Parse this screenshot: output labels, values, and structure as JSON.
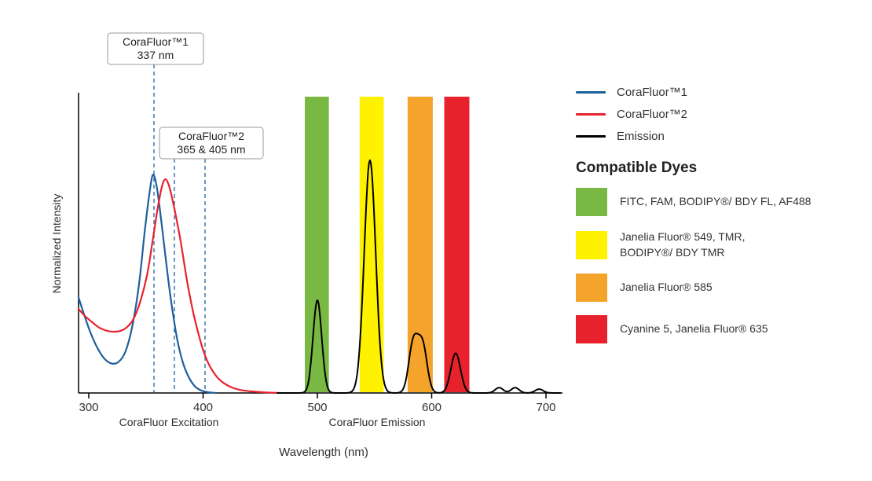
{
  "axis_labels": {
    "x": "Wavelength (nm)",
    "y": "Normalized Intensity",
    "x_sections": [
      {
        "label": "CoraFluor Excitation"
      },
      {
        "label": "CoraFluor Emission"
      }
    ]
  },
  "annotations": [
    {
      "title": "CoraFluor™1",
      "value": "337 nm"
    },
    {
      "title": "CoraFluor™2",
      "value": "365 & 405 nm"
    }
  ],
  "legend": {
    "entries": [
      {
        "label": "CoraFluor™1",
        "color": "#1E5F9E"
      },
      {
        "label": "CoraFluor™2",
        "color": "#E8222D"
      },
      {
        "label": "Emission",
        "color": "#000000"
      }
    ]
  },
  "compatible_dyes": {
    "heading": "Compatible Dyes",
    "items": [
      {
        "color": "#78B843",
        "label": "FITC, FAM, BODIPY®/ BDY FL, AF488"
      },
      {
        "color": "#FFF200",
        "label": "Janelia Fluor® 549, TMR,\nBODIPY®/ BDY TMR"
      },
      {
        "color": "#F5A42B",
        "label": "Janelia Fluor® 585"
      },
      {
        "color": "#E8222D",
        "label": "Cyanine 5, Janelia Fluor® 635"
      }
    ]
  },
  "chart_data": {
    "type": "line",
    "xlabel": "Wavelength (nm)",
    "ylabel": "Normalized Intensity",
    "xlim": [
      290,
      715
    ],
    "ylim": [
      0,
      1
    ],
    "x_ticks": [
      300,
      400,
      500,
      600,
      700
    ],
    "grid": false,
    "legend_position": "right",
    "series": [
      {
        "name": "CoraFluor™1 excitation",
        "color": "#1E5F9E",
        "excitation_max_label": "337 nm",
        "points": [
          [
            291,
            0.325
          ],
          [
            296,
            0.265
          ],
          [
            302,
            0.2
          ],
          [
            308,
            0.15
          ],
          [
            314,
            0.115
          ],
          [
            320,
            0.1
          ],
          [
            326,
            0.105
          ],
          [
            332,
            0.14
          ],
          [
            338,
            0.225
          ],
          [
            344,
            0.37
          ],
          [
            349,
            0.55
          ],
          [
            353,
            0.675
          ],
          [
            356,
            0.74
          ],
          [
            359,
            0.71
          ],
          [
            362,
            0.63
          ],
          [
            366,
            0.5
          ],
          [
            370,
            0.37
          ],
          [
            374,
            0.26
          ],
          [
            378,
            0.17
          ],
          [
            383,
            0.095
          ],
          [
            388,
            0.05
          ],
          [
            393,
            0.022
          ],
          [
            398,
            0.009
          ],
          [
            404,
            0.003
          ],
          [
            411,
            0.0
          ]
        ]
      },
      {
        "name": "CoraFluor™2 excitation",
        "color": "#E8222D",
        "excitation_max_label": "365 & 405 nm",
        "points": [
          [
            291,
            0.285
          ],
          [
            297,
            0.26
          ],
          [
            303,
            0.24
          ],
          [
            309,
            0.222
          ],
          [
            315,
            0.212
          ],
          [
            321,
            0.208
          ],
          [
            327,
            0.21
          ],
          [
            333,
            0.222
          ],
          [
            339,
            0.25
          ],
          [
            345,
            0.31
          ],
          [
            351,
            0.4
          ],
          [
            356,
            0.52
          ],
          [
            360,
            0.62
          ],
          [
            364,
            0.7
          ],
          [
            367,
            0.725
          ],
          [
            370,
            0.705
          ],
          [
            373,
            0.66
          ],
          [
            377,
            0.585
          ],
          [
            381,
            0.5
          ],
          [
            386,
            0.38
          ],
          [
            391,
            0.28
          ],
          [
            396,
            0.2
          ],
          [
            401,
            0.135
          ],
          [
            406,
            0.09
          ],
          [
            412,
            0.055
          ],
          [
            418,
            0.034
          ],
          [
            425,
            0.019
          ],
          [
            433,
            0.01
          ],
          [
            443,
            0.005
          ],
          [
            455,
            0.002
          ],
          [
            468,
            0.0
          ]
        ]
      },
      {
        "name": "Emission",
        "color": "#000000",
        "peaks": [
          {
            "center_nm": 500,
            "height": 0.315,
            "sigma_nm": 3.8
          },
          {
            "center_nm": 546,
            "height": 0.79,
            "sigma_nm": 5.0
          },
          {
            "center_nm": 584,
            "height": 0.17,
            "sigma_nm": 4.0
          },
          {
            "center_nm": 592,
            "height": 0.16,
            "sigma_nm": 4.0
          },
          {
            "center_nm": 621,
            "height": 0.135,
            "sigma_nm": 4.2
          },
          {
            "center_nm": 659,
            "height": 0.018,
            "sigma_nm": 3.5
          },
          {
            "center_nm": 673,
            "height": 0.018,
            "sigma_nm": 3.5
          },
          {
            "center_nm": 694,
            "height": 0.013,
            "sigma_nm": 3.5
          }
        ]
      }
    ],
    "filter_bands": [
      {
        "range_nm": [
          489,
          510
        ],
        "color": "#78B843",
        "dyes": "FITC, FAM, BODIPY®/ BDY FL, AF488"
      },
      {
        "range_nm": [
          537,
          558
        ],
        "color": "#FFF200",
        "dyes": "Janelia Fluor® 549, TMR, BODIPY®/ BDY TMR"
      },
      {
        "range_nm": [
          579,
          601
        ],
        "color": "#F5A42B",
        "dyes": "Janelia Fluor® 585"
      },
      {
        "range_nm": [
          611,
          633
        ],
        "color": "#E8222D",
        "dyes": "Cyanine 5, Janelia Fluor® 635"
      }
    ]
  }
}
